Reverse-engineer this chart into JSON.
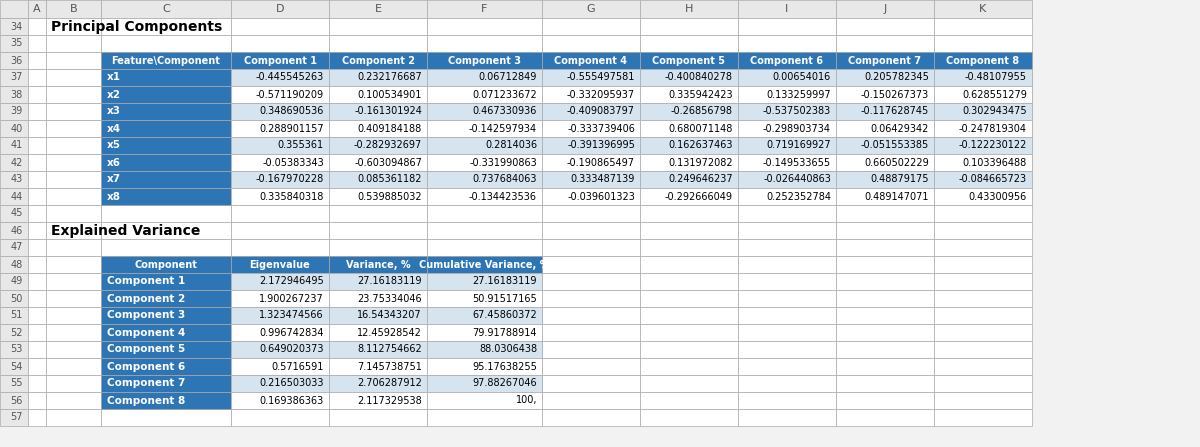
{
  "title1": "Principal Components",
  "title2": "Explained Variance",
  "pc_headers": [
    "Feature\\Component",
    "Component 1",
    "Component 2",
    "Component 3",
    "Component 4",
    "Component 5",
    "Component 6",
    "Component 7",
    "Component 8"
  ],
  "pc_rows": [
    [
      "x1",
      "-0.445545263",
      "0.232176687",
      "0.06712849",
      "-0.555497581",
      "-0.400840278",
      "0.00654016",
      "0.205782345",
      "-0.48107955"
    ],
    [
      "x2",
      "-0.571190209",
      "0.100534901",
      "0.071233672",
      "-0.332095937",
      "0.335942423",
      "0.133259997",
      "-0.150267373",
      "0.628551279"
    ],
    [
      "x3",
      "0.348690536",
      "-0.161301924",
      "0.467330936",
      "-0.409083797",
      "-0.26856798",
      "-0.537502383",
      "-0.117628745",
      "0.302943475"
    ],
    [
      "x4",
      "0.288901157",
      "0.409184188",
      "-0.142597934",
      "-0.333739406",
      "0.680071148",
      "-0.298903734",
      "0.06429342",
      "-0.247819304"
    ],
    [
      "x5",
      "0.355361",
      "-0.282932697",
      "0.2814036",
      "-0.391396995",
      "0.162637463",
      "0.719169927",
      "-0.051553385",
      "-0.122230122"
    ],
    [
      "x6",
      "-0.05383343",
      "-0.603094867",
      "-0.331990863",
      "-0.190865497",
      "0.131972082",
      "-0.149533655",
      "0.660502229",
      "0.103396488"
    ],
    [
      "x7",
      "-0.167970228",
      "0.085361182",
      "0.737684063",
      "0.333487139",
      "0.249646237",
      "-0.026440863",
      "0.48879175",
      "-0.084665723"
    ],
    [
      "x8",
      "0.335840318",
      "0.539885032",
      "-0.134423536",
      "-0.039601323",
      "-0.292666049",
      "0.252352784",
      "0.489147071",
      "0.43300956"
    ]
  ],
  "ev_headers": [
    "Component",
    "Eigenvalue",
    "Variance, %",
    "Cumulative Variance, %"
  ],
  "ev_rows": [
    [
      "Component 1",
      "2.172946495",
      "27.16183119",
      "27.16183119"
    ],
    [
      "Component 2",
      "1.900267237",
      "23.75334046",
      "50.91517165"
    ],
    [
      "Component 3",
      "1.323474566",
      "16.54343207",
      "67.45860372"
    ],
    [
      "Component 4",
      "0.996742834",
      "12.45928542",
      "79.91788914"
    ],
    [
      "Component 5",
      "0.649020373",
      "8.112754662",
      "88.0306438"
    ],
    [
      "Component 6",
      "0.5716591",
      "7.145738751",
      "95.17638255"
    ],
    [
      "Component 7",
      "0.216503033",
      "2.706287912",
      "97.88267046"
    ],
    [
      "Component 8",
      "0.169386363",
      "2.117329538",
      "100,"
    ]
  ],
  "header_bg": "#2E75B6",
  "header_fg": "#FFFFFF",
  "feat_col_bg": "#2E75B6",
  "feat_col_fg": "#FFFFFF",
  "data_bg_light": "#D6E4F0",
  "data_bg_white": "#FFFFFF",
  "grid_color": "#AAAAAA",
  "gutter_bg": "#E8E8E8",
  "gutter_fg": "#555555",
  "col_header_bg": "#E8E8E8",
  "col_header_fg": "#555555",
  "title_color": "#000000",
  "data_text_color": "#000000",
  "bg_color": "#F2F2F2",
  "row_numbers": [
    34,
    35,
    36,
    37,
    38,
    39,
    40,
    41,
    42,
    43,
    44,
    45,
    46,
    47,
    48,
    49,
    50,
    51,
    52,
    53,
    54,
    55,
    56,
    57
  ],
  "col_letters": [
    "A",
    "B",
    "C",
    "D",
    "E",
    "F",
    "G",
    "H",
    "I",
    "J",
    "K"
  ]
}
